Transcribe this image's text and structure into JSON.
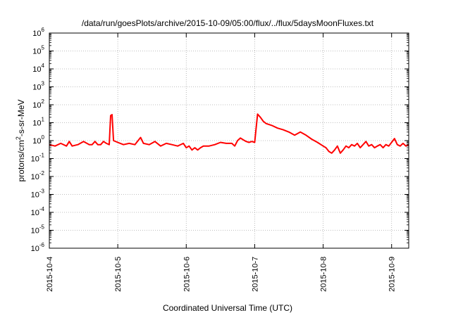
{
  "chart_data": {
    "type": "line",
    "title": "/data/run/goesPlots/archive/2015-10-09/05:00/flux/../flux/5daysMoonFluxes.txt",
    "xlabel": "Coordinated Universal Time (UTC)",
    "ylabel_parts": [
      "protons/cm",
      "2",
      "-s-sr-MeV"
    ],
    "yscale": "log",
    "ylim": [
      1e-06,
      1000000.0
    ],
    "xlim": [
      "2015-10-04T00:00",
      "2015-10-09T06:00"
    ],
    "x_ticks": [
      "2015-10-4",
      "2015-10-5",
      "2015-10-6",
      "2015-10-7",
      "2015-10-8",
      "2015-10-9"
    ],
    "y_ticks": [
      {
        "value": 1e-06,
        "base": "10",
        "exp": "-6"
      },
      {
        "value": 1e-05,
        "base": "10",
        "exp": "-5"
      },
      {
        "value": 0.0001,
        "base": "10",
        "exp": "-4"
      },
      {
        "value": 0.001,
        "base": "10",
        "exp": "-3"
      },
      {
        "value": 0.01,
        "base": "10",
        "exp": "-2"
      },
      {
        "value": 0.1,
        "base": "10",
        "exp": "-1"
      },
      {
        "value": 1.0,
        "base": "10",
        "exp": "0"
      },
      {
        "value": 10.0,
        "base": "10",
        "exp": "1"
      },
      {
        "value": 100.0,
        "base": "10",
        "exp": "2"
      },
      {
        "value": 1000.0,
        "base": "10",
        "exp": "3"
      },
      {
        "value": 10000.0,
        "base": "10",
        "exp": "4"
      },
      {
        "value": 100000.0,
        "base": "10",
        "exp": "5"
      },
      {
        "value": 1000000.0,
        "base": "10",
        "exp": "6"
      }
    ],
    "grid": true,
    "series": [
      {
        "color": "#ff0000",
        "points": [
          [
            "2015-10-04T00:00",
            0.6
          ],
          [
            "2015-10-04T02:00",
            0.5
          ],
          [
            "2015-10-04T04:00",
            0.7
          ],
          [
            "2015-10-04T06:00",
            0.5
          ],
          [
            "2015-10-04T07:00",
            0.9
          ],
          [
            "2015-10-04T08:00",
            0.5
          ],
          [
            "2015-10-04T10:00",
            0.6
          ],
          [
            "2015-10-04T12:00",
            0.9
          ],
          [
            "2015-10-04T14:00",
            0.6
          ],
          [
            "2015-10-04T15:00",
            0.6
          ],
          [
            "2015-10-04T16:00",
            0.9
          ],
          [
            "2015-10-04T17:00",
            0.6
          ],
          [
            "2015-10-04T18:00",
            0.6
          ],
          [
            "2015-10-04T19:00",
            0.9
          ],
          [
            "2015-10-04T20:00",
            0.7
          ],
          [
            "2015-10-04T21:00",
            0.6
          ],
          [
            "2015-10-04T21:30",
            25
          ],
          [
            "2015-10-04T22:00",
            28
          ],
          [
            "2015-10-04T22:30",
            1.0
          ],
          [
            "2015-10-05T00:00",
            0.8
          ],
          [
            "2015-10-05T02:00",
            0.6
          ],
          [
            "2015-10-05T04:00",
            0.7
          ],
          [
            "2015-10-05T06:00",
            0.6
          ],
          [
            "2015-10-05T08:00",
            1.5
          ],
          [
            "2015-10-05T09:00",
            0.7
          ],
          [
            "2015-10-05T11:00",
            0.6
          ],
          [
            "2015-10-05T13:00",
            0.9
          ],
          [
            "2015-10-05T15:00",
            0.5
          ],
          [
            "2015-10-05T17:00",
            0.7
          ],
          [
            "2015-10-05T19:00",
            0.6
          ],
          [
            "2015-10-05T21:00",
            0.5
          ],
          [
            "2015-10-05T23:00",
            0.7
          ],
          [
            "2015-10-06T00:00",
            0.4
          ],
          [
            "2015-10-06T01:00",
            0.5
          ],
          [
            "2015-10-06T02:00",
            0.3
          ],
          [
            "2015-10-06T03:00",
            0.4
          ],
          [
            "2015-10-06T04:00",
            0.3
          ],
          [
            "2015-10-06T05:00",
            0.4
          ],
          [
            "2015-10-06T06:00",
            0.5
          ],
          [
            "2015-10-06T08:00",
            0.5
          ],
          [
            "2015-10-06T10:00",
            0.6
          ],
          [
            "2015-10-06T12:00",
            0.8
          ],
          [
            "2015-10-06T14:00",
            0.7
          ],
          [
            "2015-10-06T16:00",
            0.7
          ],
          [
            "2015-10-06T17:00",
            0.5
          ],
          [
            "2015-10-06T18:00",
            1.0
          ],
          [
            "2015-10-06T19:00",
            1.4
          ],
          [
            "2015-10-06T20:00",
            1.1
          ],
          [
            "2015-10-06T21:00",
            0.9
          ],
          [
            "2015-10-06T22:00",
            0.8
          ],
          [
            "2015-10-06T23:00",
            0.9
          ],
          [
            "2015-10-07T00:00",
            0.8
          ],
          [
            "2015-10-07T01:00",
            30
          ],
          [
            "2015-10-07T02:00",
            20
          ],
          [
            "2015-10-07T03:00",
            12
          ],
          [
            "2015-10-07T04:00",
            9
          ],
          [
            "2015-10-07T06:00",
            7
          ],
          [
            "2015-10-07T08:00",
            5
          ],
          [
            "2015-10-07T10:00",
            4
          ],
          [
            "2015-10-07T12:00",
            3
          ],
          [
            "2015-10-07T14:00",
            2
          ],
          [
            "2015-10-07T16:00",
            3
          ],
          [
            "2015-10-07T18:00",
            2
          ],
          [
            "2015-10-07T20:00",
            1.2
          ],
          [
            "2015-10-07T22:00",
            0.8
          ],
          [
            "2015-10-08T00:00",
            0.5
          ],
          [
            "2015-10-08T01:00",
            0.4
          ],
          [
            "2015-10-08T02:00",
            0.25
          ],
          [
            "2015-10-08T03:00",
            0.2
          ],
          [
            "2015-10-08T04:00",
            0.3
          ],
          [
            "2015-10-08T05:00",
            0.5
          ],
          [
            "2015-10-08T06:00",
            0.2
          ],
          [
            "2015-10-08T07:00",
            0.3
          ],
          [
            "2015-10-08T08:00",
            0.5
          ],
          [
            "2015-10-08T09:00",
            0.4
          ],
          [
            "2015-10-08T10:00",
            0.6
          ],
          [
            "2015-10-08T11:00",
            0.5
          ],
          [
            "2015-10-08T12:00",
            0.7
          ],
          [
            "2015-10-08T13:00",
            0.4
          ],
          [
            "2015-10-08T14:00",
            0.6
          ],
          [
            "2015-10-08T15:00",
            0.9
          ],
          [
            "2015-10-08T16:00",
            0.5
          ],
          [
            "2015-10-08T17:00",
            0.6
          ],
          [
            "2015-10-08T18:00",
            0.4
          ],
          [
            "2015-10-08T19:00",
            0.5
          ],
          [
            "2015-10-08T20:00",
            0.6
          ],
          [
            "2015-10-08T21:00",
            0.4
          ],
          [
            "2015-10-08T22:00",
            0.6
          ],
          [
            "2015-10-08T23:00",
            0.5
          ],
          [
            "2015-10-09T00:00",
            0.8
          ],
          [
            "2015-10-09T01:00",
            1.3
          ],
          [
            "2015-10-09T02:00",
            0.6
          ],
          [
            "2015-10-09T03:00",
            0.5
          ],
          [
            "2015-10-09T04:00",
            0.7
          ],
          [
            "2015-10-09T05:00",
            0.5
          ],
          [
            "2015-10-09T06:00",
            0.6
          ]
        ]
      }
    ]
  }
}
